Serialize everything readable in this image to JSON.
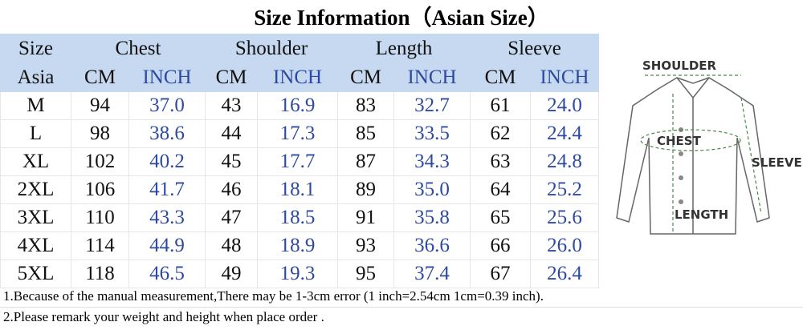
{
  "header": {
    "title": "Size Information（Asian Size）"
  },
  "table": {
    "header_rows": [
      [
        "Size",
        "Chest",
        "Shoulder",
        "Length",
        "Sleeve"
      ],
      [
        "Asia",
        "CM",
        "INCH",
        "CM",
        "INCH",
        "CM",
        "INCH",
        "CM",
        "INCH"
      ]
    ],
    "rows": [
      [
        "M",
        "94",
        "37.0",
        "43",
        "16.9",
        "83",
        "32.7",
        "61",
        "24.0"
      ],
      [
        "L",
        "98",
        "38.6",
        "44",
        "17.3",
        "85",
        "33.5",
        "62",
        "24.4"
      ],
      [
        "XL",
        "102",
        "40.2",
        "45",
        "17.7",
        "87",
        "34.3",
        "63",
        "24.8"
      ],
      [
        "2XL",
        "106",
        "41.7",
        "46",
        "18.1",
        "89",
        "35.0",
        "64",
        "25.2"
      ],
      [
        "3XL",
        "110",
        "43.3",
        "47",
        "18.5",
        "91",
        "35.8",
        "65",
        "25.6"
      ],
      [
        "4XL",
        "114",
        "44.9",
        "48",
        "18.9",
        "93",
        "36.6",
        "66",
        "26.0"
      ],
      [
        "5XL",
        "118",
        "46.5",
        "49",
        "19.3",
        "95",
        "37.4",
        "67",
        "26.4"
      ]
    ]
  },
  "notes": [
    "1.Because of the manual measurement,There may be 1-3cm error (1 inch=2.54cm 1cm=0.39 inch).",
    "2.Please remark your weight and height when place order ."
  ],
  "diagram": {
    "labels": [
      "SHOULDER",
      "CHEST",
      "SLEEVE",
      "LENGTH"
    ]
  }
}
